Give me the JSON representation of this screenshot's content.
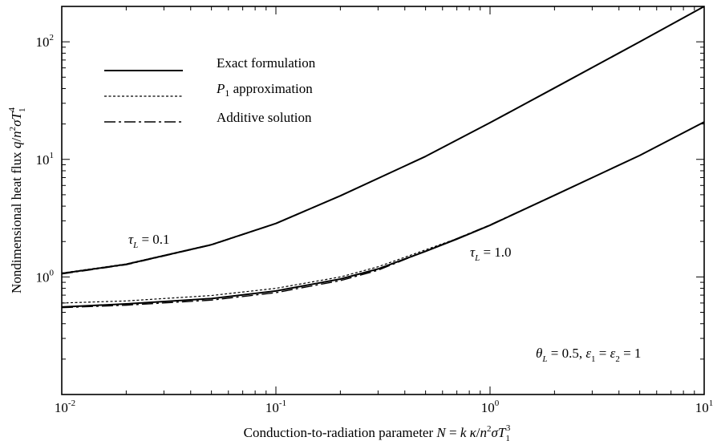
{
  "chart_data": {
    "type": "line",
    "xscale": "log",
    "yscale": "log",
    "xlim": [
      0.01,
      10
    ],
    "ylim": [
      0.1,
      200
    ],
    "xticks": [
      {
        "value": 0.01,
        "base": "10",
        "exp": "-2"
      },
      {
        "value": 0.1,
        "base": "10",
        "exp": "-1"
      },
      {
        "value": 1,
        "base": "10",
        "exp": "0"
      },
      {
        "value": 10,
        "base": "10",
        "exp": "1"
      }
    ],
    "yticks": [
      {
        "value": 1,
        "base": "10",
        "exp": "0"
      },
      {
        "value": 10,
        "base": "10",
        "exp": "1"
      },
      {
        "value": 100,
        "base": "10",
        "exp": "2"
      }
    ],
    "xlabel": "Conduction-to-radiation parameter N = kκ/n²σT₁³",
    "ylabel": "Nondimensional heat flux q/n²σT₁⁴",
    "grid": false,
    "legend_position": "top-left",
    "legend": [
      {
        "label": "Exact formulation",
        "style": "solid"
      },
      {
        "label": "P₁ approximation",
        "style": "dotted"
      },
      {
        "label": "Additive solution",
        "style": "dashdot"
      }
    ],
    "annotations": [
      {
        "text": "τL = 0.1",
        "curve_group": "tauL_0.1"
      },
      {
        "text": "τL = 1.0",
        "curve_group": "tauL_1.0"
      },
      {
        "text": "θL = 0.5,  ε1 = ε2 = 1"
      }
    ],
    "series": [
      {
        "curve_group": "tauL_0.1",
        "style": "solid",
        "x": [
          0.01,
          0.02,
          0.05,
          0.1,
          0.2,
          0.5,
          1,
          2,
          5,
          10
        ],
        "y": [
          1.07,
          1.28,
          1.88,
          2.85,
          4.9,
          10.6,
          20.5,
          40.5,
          100,
          200
        ]
      },
      {
        "curve_group": "tauL_0.1",
        "style": "dotted",
        "x": [
          0.01,
          0.02,
          0.05,
          0.1,
          0.2,
          0.5,
          1,
          2,
          5,
          10
        ],
        "y": [
          1.08,
          1.29,
          1.89,
          2.86,
          4.91,
          10.6,
          20.5,
          40.5,
          100,
          200
        ]
      },
      {
        "curve_group": "tauL_0.1",
        "style": "dashdot",
        "x": [
          0.01,
          0.02,
          0.05,
          0.1,
          0.2,
          0.5,
          1,
          2,
          5,
          10
        ],
        "y": [
          1.06,
          1.27,
          1.87,
          2.84,
          4.9,
          10.6,
          20.5,
          40.5,
          100,
          200
        ]
      },
      {
        "curve_group": "tauL_1.0",
        "style": "solid",
        "x": [
          0.01,
          0.02,
          0.05,
          0.1,
          0.2,
          0.3,
          0.5,
          0.7,
          1,
          2,
          5,
          10
        ],
        "y": [
          0.555,
          0.59,
          0.655,
          0.76,
          0.96,
          1.17,
          1.65,
          2.1,
          2.75,
          4.95,
          10.8,
          20.8
        ]
      },
      {
        "curve_group": "tauL_1.0",
        "style": "dotted",
        "x": [
          0.01,
          0.02,
          0.05,
          0.1,
          0.2,
          0.3,
          0.5,
          0.7,
          1,
          2,
          5,
          10
        ],
        "y": [
          0.6,
          0.625,
          0.695,
          0.8,
          1.0,
          1.22,
          1.7,
          2.12,
          2.77,
          4.96,
          10.8,
          20.8
        ]
      },
      {
        "curve_group": "tauL_1.0",
        "style": "dashdot",
        "x": [
          0.01,
          0.02,
          0.05,
          0.1,
          0.2,
          0.3,
          0.5,
          0.7,
          1,
          2,
          5,
          10
        ],
        "y": [
          0.548,
          0.575,
          0.635,
          0.735,
          0.93,
          1.14,
          1.66,
          2.12,
          2.77,
          4.96,
          10.8,
          20.8
        ]
      }
    ]
  }
}
